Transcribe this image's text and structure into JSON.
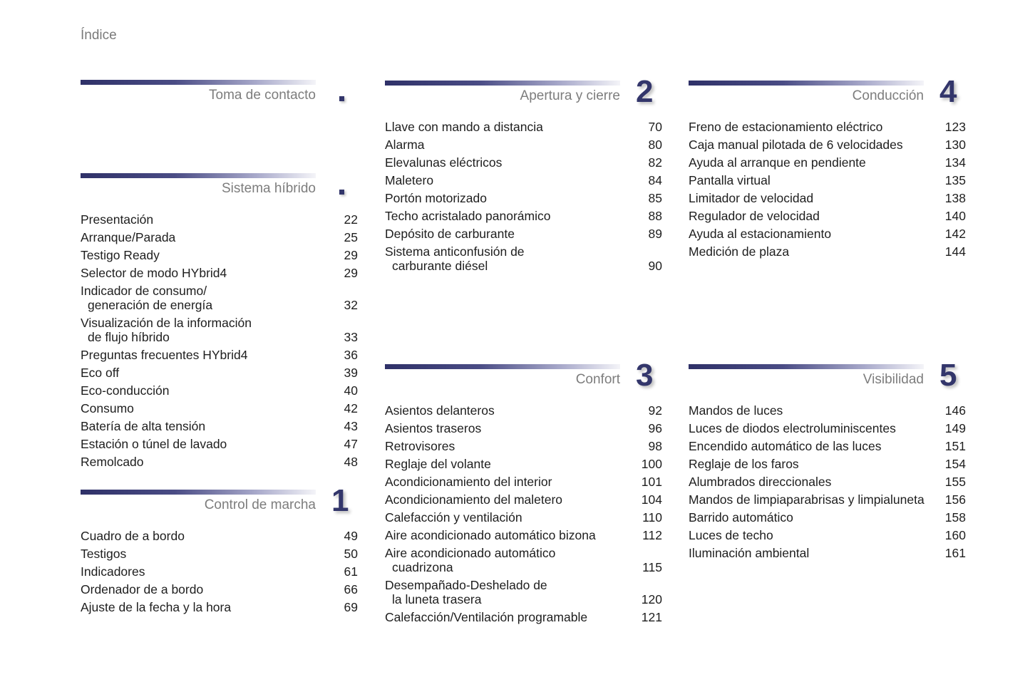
{
  "page_title": "Índice",
  "accent_color": "#33366b",
  "sections": [
    {
      "id": "toma",
      "title": "Toma de contacto",
      "marker": "square",
      "items": []
    },
    {
      "id": "hibrido",
      "title": "Sistema híbrido",
      "marker": "square",
      "items": [
        {
          "lines": [
            "Presentación"
          ],
          "page": "22"
        },
        {
          "lines": [
            "Arranque/Parada"
          ],
          "page": "25"
        },
        {
          "lines": [
            "Testigo Ready"
          ],
          "page": "29"
        },
        {
          "lines": [
            "Selector de modo HYbrid4"
          ],
          "page": "29"
        },
        {
          "lines": [
            "Indicador de consumo/",
            "generación de energía"
          ],
          "page": "32"
        },
        {
          "lines": [
            "Visualización de la información",
            "de flujo híbrido"
          ],
          "page": "33"
        },
        {
          "lines": [
            "Preguntas frecuentes HYbrid4"
          ],
          "page": "36"
        },
        {
          "lines": [
            "Eco off"
          ],
          "page": "39"
        },
        {
          "lines": [
            "Eco-conducción"
          ],
          "page": "40"
        },
        {
          "lines": [
            "Consumo"
          ],
          "page": "42"
        },
        {
          "lines": [
            "Batería de alta tensión"
          ],
          "page": "43"
        },
        {
          "lines": [
            "Estación o túnel de lavado"
          ],
          "page": "47"
        },
        {
          "lines": [
            "Remolcado"
          ],
          "page": "48"
        }
      ]
    },
    {
      "id": "marcha",
      "title": "Control de marcha",
      "marker": "1",
      "items": [
        {
          "lines": [
            "Cuadro de a bordo"
          ],
          "page": "49"
        },
        {
          "lines": [
            "Testigos"
          ],
          "page": "50"
        },
        {
          "lines": [
            "Indicadores"
          ],
          "page": "61"
        },
        {
          "lines": [
            "Ordenador de a bordo"
          ],
          "page": "66"
        },
        {
          "lines": [
            "Ajuste de la fecha y la hora"
          ],
          "page": "69"
        }
      ]
    },
    {
      "id": "apertura",
      "title": "Apertura y cierre",
      "marker": "2",
      "items": [
        {
          "lines": [
            "Llave con mando a distancia"
          ],
          "page": "70"
        },
        {
          "lines": [
            "Alarma"
          ],
          "page": "80"
        },
        {
          "lines": [
            "Elevalunas eléctricos"
          ],
          "page": "82"
        },
        {
          "lines": [
            "Maletero"
          ],
          "page": "84"
        },
        {
          "lines": [
            "Portón motorizado"
          ],
          "page": "85"
        },
        {
          "lines": [
            "Techo acristalado panorámico"
          ],
          "page": "88"
        },
        {
          "lines": [
            "Depósito de carburante"
          ],
          "page": "89"
        },
        {
          "lines": [
            "Sistema anticonfusión de",
            "carburante diésel"
          ],
          "page": "90"
        }
      ]
    },
    {
      "id": "confort",
      "title": "Confort",
      "marker": "3",
      "items": [
        {
          "lines": [
            "Asientos delanteros"
          ],
          "page": "92"
        },
        {
          "lines": [
            "Asientos traseros"
          ],
          "page": "96"
        },
        {
          "lines": [
            "Retrovisores"
          ],
          "page": "98"
        },
        {
          "lines": [
            "Reglaje del volante"
          ],
          "page": "100"
        },
        {
          "lines": [
            "Acondicionamiento del interior"
          ],
          "page": "101"
        },
        {
          "lines": [
            "Acondicionamiento del maletero"
          ],
          "page": "104"
        },
        {
          "lines": [
            "Calefacción y ventilación"
          ],
          "page": "110"
        },
        {
          "lines": [
            "Aire acondicionado automático bizona"
          ],
          "page": "112"
        },
        {
          "lines": [
            "Aire acondicionado automático",
            "cuadrizona"
          ],
          "page": "115"
        },
        {
          "lines": [
            "Desempañado-Deshelado de",
            "la luneta trasera"
          ],
          "page": "120"
        },
        {
          "lines": [
            "Calefacción/Ventilación programable"
          ],
          "page": "121"
        }
      ]
    },
    {
      "id": "conduccion",
      "title": "Conducción",
      "marker": "4",
      "items": [
        {
          "lines": [
            "Freno de estacionamiento eléctrico"
          ],
          "page": "123"
        },
        {
          "lines": [
            "Caja manual pilotada de 6 velocidades"
          ],
          "page": "130"
        },
        {
          "lines": [
            "Ayuda al arranque en pendiente"
          ],
          "page": "134"
        },
        {
          "lines": [
            "Pantalla virtual"
          ],
          "page": "135"
        },
        {
          "lines": [
            "Limitador de velocidad"
          ],
          "page": "138"
        },
        {
          "lines": [
            "Regulador de velocidad"
          ],
          "page": "140"
        },
        {
          "lines": [
            "Ayuda al estacionamiento"
          ],
          "page": "142"
        },
        {
          "lines": [
            "Medición de plaza"
          ],
          "page": "144"
        }
      ]
    },
    {
      "id": "visibilidad",
      "title": "Visibilidad",
      "marker": "5",
      "items": [
        {
          "lines": [
            "Mandos de luces"
          ],
          "page": "146"
        },
        {
          "lines": [
            "Luces de diodos electroluminiscentes"
          ],
          "page": "149"
        },
        {
          "lines": [
            "Encendido automático de las luces"
          ],
          "page": "151"
        },
        {
          "lines": [
            "Reglaje de los faros"
          ],
          "page": "154"
        },
        {
          "lines": [
            "Alumbrados direccionales"
          ],
          "page": "155"
        },
        {
          "lines": [
            "Mandos de limpiaparabrisas y limpialuneta"
          ],
          "page": "156"
        },
        {
          "lines": [
            "Barrido automático"
          ],
          "page": "158"
        },
        {
          "lines": [
            "Luces de techo"
          ],
          "page": "160"
        },
        {
          "lines": [
            "Iluminación ambiental"
          ],
          "page": "161"
        }
      ]
    }
  ]
}
